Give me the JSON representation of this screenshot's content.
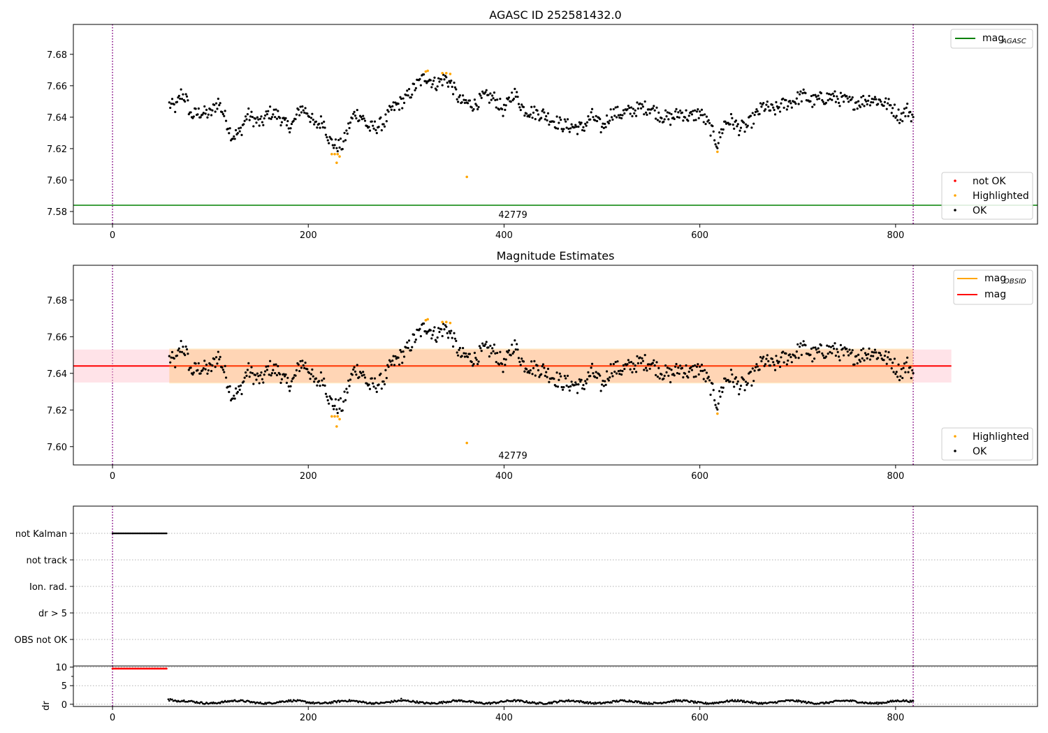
{
  "chart_data": [
    {
      "type": "scatter",
      "title": "AGASC ID 252581432.0",
      "xlim": [
        -40,
        945
      ],
      "ylim": [
        7.572,
        7.699
      ],
      "xticks": [
        0,
        200,
        400,
        600,
        800
      ],
      "yticks": [
        7.58,
        7.6,
        7.62,
        7.64,
        7.66,
        7.68
      ],
      "ytick_labels": [
        "7.58",
        "7.60",
        "7.62",
        "7.64",
        "7.66",
        "7.68"
      ],
      "vlines": [
        0,
        818
      ],
      "hline": {
        "name": "mag_AGASC",
        "value": 7.584,
        "color": "#008000"
      },
      "annotation": {
        "text": "42779",
        "x": 409
      },
      "legend_lines": [
        {
          "label": "mag",
          "sub": "AGASC",
          "color": "#008000"
        }
      ],
      "legend_points": [
        {
          "label": "not OK",
          "color": "#ff0000"
        },
        {
          "label": "Highlighted",
          "color": "#ffa500"
        },
        {
          "label": "OK",
          "color": "#000000"
        }
      ],
      "highlighted": [
        [
          224,
          7.6165
        ],
        [
          227,
          7.6165
        ],
        [
          229,
          7.611
        ],
        [
          230,
          7.6165
        ],
        [
          232,
          7.615
        ],
        [
          320,
          7.669
        ],
        [
          322,
          7.6695
        ],
        [
          337,
          7.668
        ],
        [
          341,
          7.668
        ],
        [
          345,
          7.6675
        ],
        [
          362,
          7.602
        ],
        [
          618,
          7.618
        ]
      ],
      "series_anchors": [
        [
          58,
          7.648
        ],
        [
          65,
          7.646
        ],
        [
          70,
          7.655
        ],
        [
          75,
          7.652
        ],
        [
          80,
          7.641
        ],
        [
          90,
          7.643
        ],
        [
          100,
          7.642
        ],
        [
          108,
          7.65
        ],
        [
          115,
          7.64
        ],
        [
          122,
          7.628
        ],
        [
          130,
          7.63
        ],
        [
          138,
          7.642
        ],
        [
          145,
          7.638
        ],
        [
          152,
          7.636
        ],
        [
          160,
          7.643
        ],
        [
          170,
          7.641
        ],
        [
          178,
          7.634
        ],
        [
          185,
          7.636
        ],
        [
          192,
          7.646
        ],
        [
          200,
          7.643
        ],
        [
          207,
          7.634
        ],
        [
          215,
          7.638
        ],
        [
          222,
          7.625
        ],
        [
          228,
          7.622
        ],
        [
          235,
          7.622
        ],
        [
          242,
          7.635
        ],
        [
          248,
          7.643
        ],
        [
          255,
          7.64
        ],
        [
          262,
          7.633
        ],
        [
          270,
          7.634
        ],
        [
          278,
          7.637
        ],
        [
          285,
          7.645
        ],
        [
          292,
          7.648
        ],
        [
          300,
          7.652
        ],
        [
          310,
          7.66
        ],
        [
          320,
          7.666
        ],
        [
          330,
          7.661
        ],
        [
          340,
          7.665
        ],
        [
          347,
          7.66
        ],
        [
          355,
          7.65
        ],
        [
          362,
          7.649
        ],
        [
          370,
          7.648
        ],
        [
          380,
          7.653
        ],
        [
          390,
          7.652
        ],
        [
          400,
          7.644
        ],
        [
          410,
          7.656
        ],
        [
          420,
          7.645
        ],
        [
          430,
          7.643
        ],
        [
          440,
          7.642
        ],
        [
          450,
          7.638
        ],
        [
          460,
          7.635
        ],
        [
          470,
          7.634
        ],
        [
          480,
          7.633
        ],
        [
          490,
          7.641
        ],
        [
          500,
          7.633
        ],
        [
          510,
          7.643
        ],
        [
          520,
          7.642
        ],
        [
          530,
          7.644
        ],
        [
          540,
          7.646
        ],
        [
          550,
          7.646
        ],
        [
          560,
          7.641
        ],
        [
          570,
          7.639
        ],
        [
          580,
          7.643
        ],
        [
          590,
          7.64
        ],
        [
          600,
          7.643
        ],
        [
          610,
          7.634
        ],
        [
          618,
          7.623
        ],
        [
          625,
          7.636
        ],
        [
          632,
          7.638
        ],
        [
          640,
          7.633
        ],
        [
          648,
          7.634
        ],
        [
          656,
          7.64
        ],
        [
          665,
          7.647
        ],
        [
          675,
          7.644
        ],
        [
          685,
          7.648
        ],
        [
          695,
          7.65
        ],
        [
          705,
          7.654
        ],
        [
          715,
          7.65
        ],
        [
          725,
          7.652
        ],
        [
          735,
          7.653
        ],
        [
          745,
          7.651
        ],
        [
          755,
          7.649
        ],
        [
          765,
          7.65
        ],
        [
          775,
          7.652
        ],
        [
          785,
          7.65
        ],
        [
          795,
          7.647
        ],
        [
          805,
          7.64
        ],
        [
          812,
          7.645
        ],
        [
          818,
          7.64
        ]
      ],
      "noise_amplitude": 0.0045
    },
    {
      "type": "scatter",
      "title": "Magnitude Estimates",
      "xlim": [
        -40,
        945
      ],
      "ylim": [
        7.59,
        7.699
      ],
      "xticks": [
        0,
        200,
        400,
        600,
        800
      ],
      "yticks": [
        7.6,
        7.62,
        7.64,
        7.66,
        7.68
      ],
      "ytick_labels": [
        "7.60",
        "7.62",
        "7.64",
        "7.66",
        "7.68"
      ],
      "vlines": [
        0,
        818
      ],
      "mag_line": {
        "value": 7.644,
        "x_range": [
          -40,
          857
        ],
        "color": "#ff0000"
      },
      "mag_band": {
        "low": 7.635,
        "high": 7.653,
        "color": "#ffc0cb"
      },
      "obsid_band": {
        "low": 7.6345,
        "high": 7.6535,
        "x_range": [
          58,
          818
        ],
        "color": "#ffa500"
      },
      "annotation": {
        "text": "42779",
        "x": 409
      },
      "legend_lines": [
        {
          "label": "mag",
          "sub": "OBSID",
          "color": "#ffa500"
        },
        {
          "label": "mag",
          "sub": "",
          "color": "#ff0000"
        }
      ],
      "legend_points": [
        {
          "label": "Highlighted",
          "color": "#ffa500"
        },
        {
          "label": "OK",
          "color": "#000000"
        }
      ]
    },
    {
      "type": "scatter",
      "categories": [
        "not Kalman",
        "not track",
        "Ion. rad.",
        "dr > 5",
        "OBS not OK"
      ],
      "xlim": [
        -40,
        945
      ],
      "xticks": [
        0,
        200,
        400,
        600,
        800
      ],
      "vlines": [
        0,
        818
      ],
      "not_kalman_range": [
        0,
        56
      ],
      "dr": {
        "ylabel": "dr",
        "yticks": [
          0,
          5,
          10
        ],
        "ylim": [
          -0.6,
          10.3
        ],
        "flag_range": [
          0,
          56
        ],
        "flag_value": 9.6,
        "ok_range": [
          57,
          818
        ],
        "ok_level": 0.6,
        "spike_point": [
          295,
          1.5
        ]
      }
    }
  ]
}
